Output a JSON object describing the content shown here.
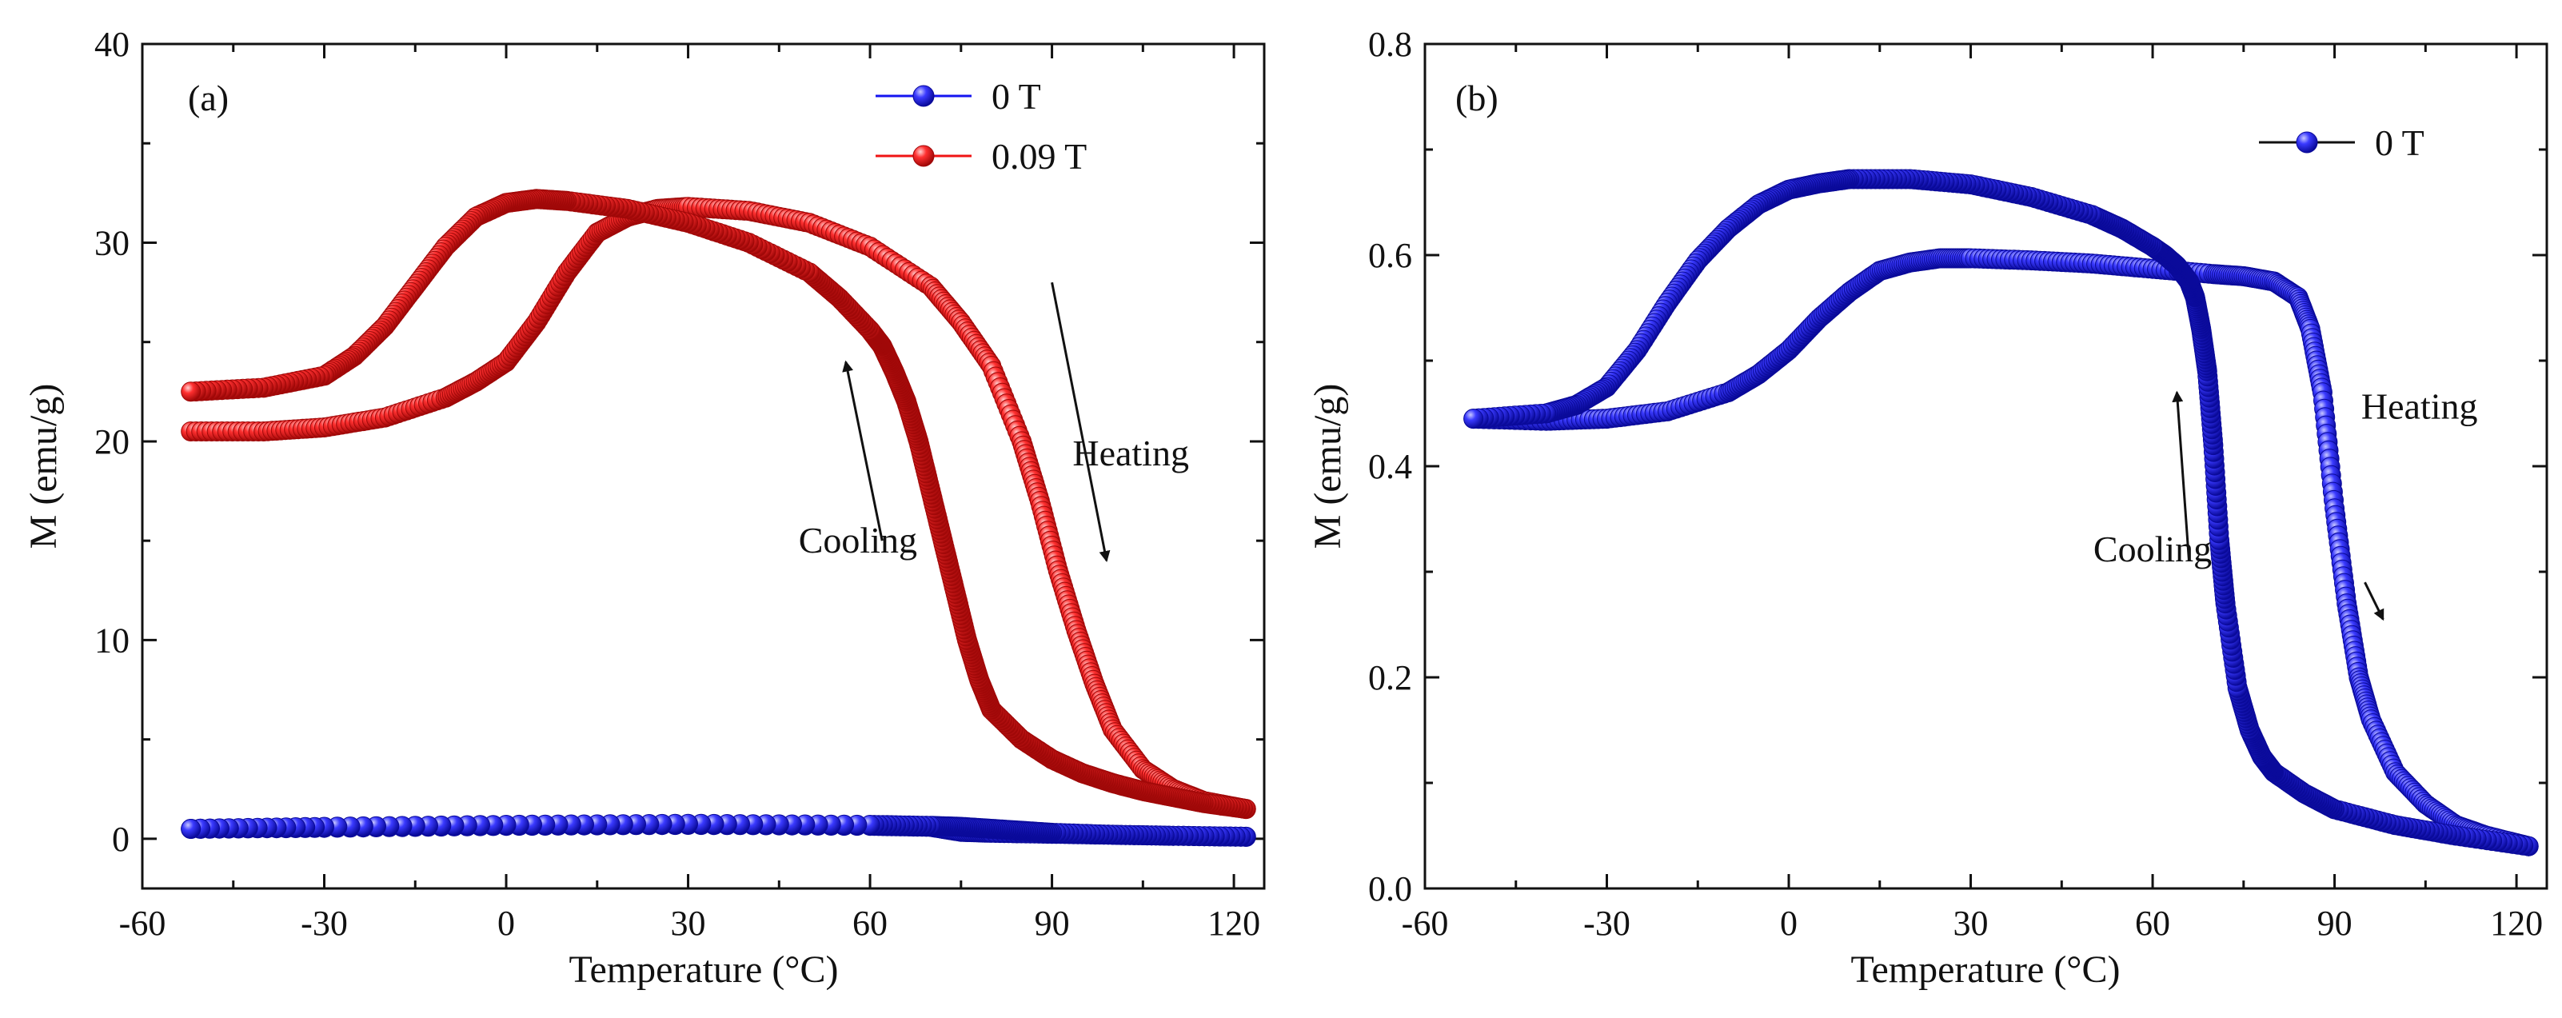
{
  "figure": {
    "panels": [
      "(a)",
      "(b)"
    ]
  },
  "chart_data": [
    {
      "type": "scatter",
      "panel_label": "(a)",
      "title": "",
      "xlabel": "Temperature (°C)",
      "ylabel": "M (emu/g)",
      "xlim": [
        -60,
        125
      ],
      "ylim": [
        -2.5,
        40
      ],
      "xticks": [
        -60,
        -30,
        0,
        30,
        60,
        90,
        120
      ],
      "yticks": [
        0,
        10,
        20,
        30,
        40
      ],
      "legend_position": "top-right",
      "series": [
        {
          "name": "0 T",
          "color": "#1414f0",
          "branches": [
            {
              "name": "heating",
              "x": [
                -52,
                -30,
                0,
                30,
                60,
                70,
                75,
                80,
                90,
                100,
                110,
                122
              ],
              "y": [
                0.5,
                0.55,
                0.65,
                0.7,
                0.65,
                0.6,
                0.35,
                0.3,
                0.25,
                0.2,
                0.15,
                0.1
              ]
            },
            {
              "name": "cooling",
              "x": [
                122,
                110,
                100,
                90,
                85,
                80,
                75,
                70,
                60,
                30,
                0,
                -30,
                -52
              ],
              "y": [
                0.1,
                0.15,
                0.2,
                0.3,
                0.4,
                0.5,
                0.6,
                0.65,
                0.7,
                0.75,
                0.7,
                0.6,
                0.5
              ]
            }
          ]
        },
        {
          "name": "0.09 T",
          "color": "#f01414",
          "branches": [
            {
              "name": "heating",
              "x": [
                -52,
                -40,
                -30,
                -20,
                -10,
                -5,
                0,
                5,
                10,
                15,
                20,
                25,
                30,
                40,
                50,
                60,
                70,
                75,
                80,
                85,
                88,
                91,
                94,
                97,
                100,
                105,
                110,
                115,
                122
              ],
              "y": [
                20.5,
                20.5,
                20.7,
                21.2,
                22.2,
                23,
                24,
                26,
                28.5,
                30.5,
                31.3,
                31.7,
                31.8,
                31.6,
                31,
                29.8,
                27.8,
                26,
                23.8,
                20,
                17,
                13.5,
                10.5,
                7.8,
                5.5,
                3.5,
                2.5,
                1.9,
                1.5
              ]
            },
            {
              "name": "cooling",
              "x": [
                122,
                115,
                110,
                105,
                100,
                95,
                90,
                85,
                80,
                78,
                76,
                74,
                72,
                70,
                68,
                66,
                64,
                62,
                60,
                55,
                50,
                40,
                30,
                20,
                10,
                5,
                0,
                -5,
                -10,
                -15,
                -20,
                -25,
                -30,
                -40,
                -52
              ],
              "y": [
                1.5,
                1.8,
                2.1,
                2.4,
                2.8,
                3.3,
                4.0,
                5.0,
                6.5,
                8.0,
                10.0,
                12.5,
                15.0,
                17.5,
                20.0,
                22.0,
                23.5,
                24.8,
                25.6,
                27.2,
                28.5,
                30.0,
                31.0,
                31.7,
                32.1,
                32.2,
                32.0,
                31.3,
                29.8,
                27.8,
                25.8,
                24.3,
                23.3,
                22.7,
                22.5
              ]
            }
          ]
        }
      ],
      "annotations": [
        {
          "text": "Heating",
          "x": 103,
          "y": 18.8,
          "arrow_from": [
            90,
            28
          ],
          "arrow_to": [
            99,
            14
          ]
        },
        {
          "text": "Cooling",
          "x": 58,
          "y": 14.4,
          "arrow_from": [
            62,
            15
          ],
          "arrow_to": [
            56,
            24
          ]
        }
      ]
    },
    {
      "type": "scatter",
      "panel_label": "(b)",
      "title": "",
      "xlabel": "Temperature (°C)",
      "ylabel": "M (emu/g)",
      "xlim": [
        -60,
        125
      ],
      "ylim": [
        0,
        0.8
      ],
      "xticks": [
        -60,
        -30,
        0,
        30,
        60,
        90,
        120
      ],
      "yticks": [
        0.0,
        0.2,
        0.4,
        0.6,
        0.8
      ],
      "legend_position": "top-right",
      "series": [
        {
          "name": "0 T",
          "color": "#1414f0",
          "branches": [
            {
              "name": "heating",
              "x": [
                -52,
                -40,
                -30,
                -20,
                -10,
                -5,
                0,
                5,
                10,
                15,
                20,
                25,
                30,
                40,
                50,
                60,
                70,
                75,
                80,
                84,
                86,
                88,
                90,
                92,
                94,
                96,
                100,
                105,
                110,
                115,
                122
              ],
              "y": [
                0.445,
                0.443,
                0.445,
                0.452,
                0.47,
                0.487,
                0.51,
                0.54,
                0.565,
                0.585,
                0.593,
                0.597,
                0.597,
                0.595,
                0.592,
                0.587,
                0.582,
                0.58,
                0.575,
                0.56,
                0.53,
                0.47,
                0.36,
                0.27,
                0.2,
                0.16,
                0.11,
                0.08,
                0.06,
                0.05,
                0.04
              ]
            },
            {
              "name": "cooling",
              "x": [
                122,
                110,
                100,
                90,
                85,
                80,
                78,
                76,
                74,
                72,
                71,
                70,
                69,
                68,
                67,
                66,
                64,
                62,
                60,
                55,
                50,
                40,
                30,
                20,
                10,
                5,
                0,
                -5,
                -10,
                -15,
                -20,
                -25,
                -30,
                -35,
                -40,
                -52
              ],
              "y": [
                0.04,
                0.05,
                0.06,
                0.075,
                0.09,
                0.11,
                0.125,
                0.15,
                0.19,
                0.27,
                0.33,
                0.42,
                0.49,
                0.53,
                0.56,
                0.575,
                0.59,
                0.6,
                0.608,
                0.625,
                0.638,
                0.655,
                0.667,
                0.672,
                0.672,
                0.668,
                0.662,
                0.648,
                0.625,
                0.595,
                0.555,
                0.51,
                0.475,
                0.458,
                0.45,
                0.445
              ]
            }
          ]
        }
      ],
      "annotations": [
        {
          "text": "Heating",
          "x": 104,
          "y": 0.445,
          "arrow_from": [
            95,
            0.29
          ],
          "arrow_to": [
            98,
            0.255
          ]
        },
        {
          "text": "Cooling",
          "x": 60,
          "y": 0.31,
          "arrow_from": [
            66,
            0.31
          ],
          "arrow_to": [
            64,
            0.47
          ]
        }
      ]
    }
  ]
}
